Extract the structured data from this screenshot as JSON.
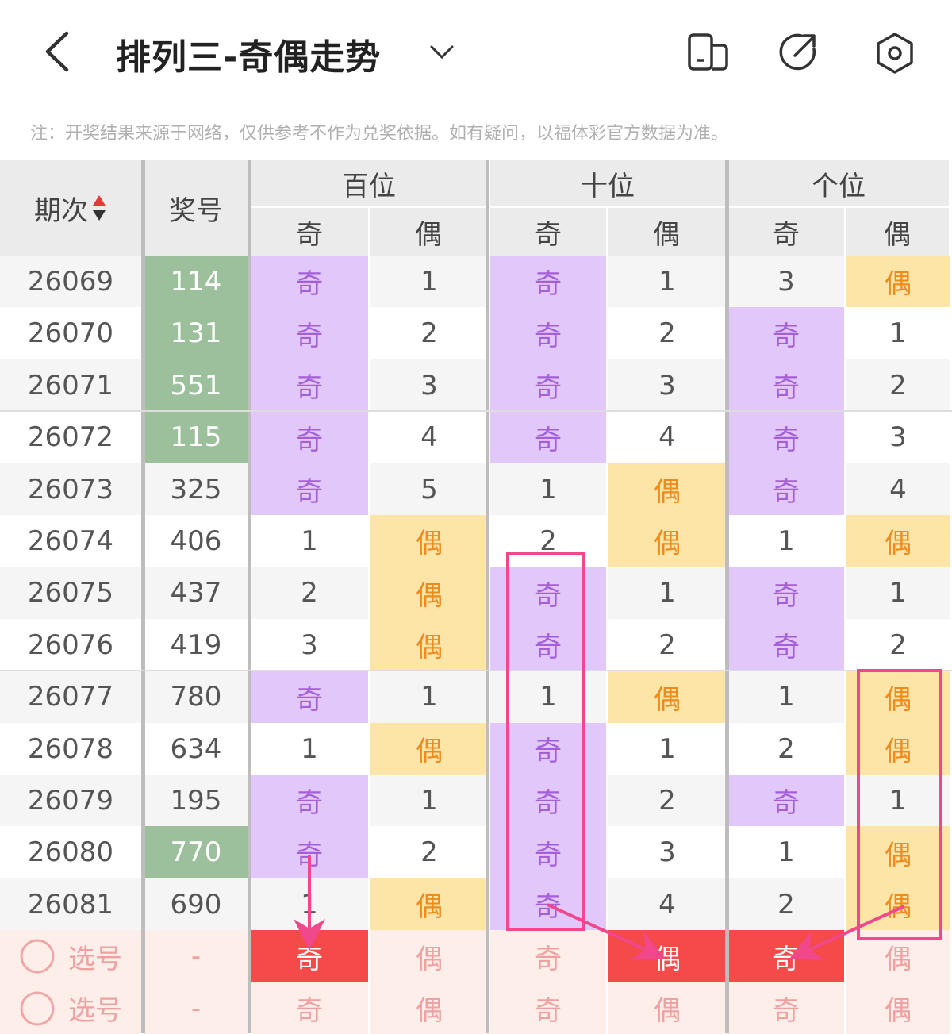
{
  "header": {
    "title": "排列三-奇偶走势",
    "icons": [
      "back-icon",
      "chevron-down-icon",
      "layout-toggle-icon",
      "share-icon",
      "settings-icon"
    ]
  },
  "note": "注：开奖结果来源于网络，仅供参考不作为兑奖依据。如有疑问，以福体彩官方数据为准。",
  "columns": {
    "period": "期次",
    "number": "奖号",
    "groups": [
      "百位",
      "十位",
      "个位"
    ],
    "sub": [
      "奇",
      "偶"
    ]
  },
  "colors": {
    "odd_bg": "#e2c7fb",
    "odd_text": "#a45fd8",
    "even_bg": "#fde4a7",
    "even_text": "#ef8a1c",
    "highlight_number": "#9dc09c",
    "selected": "#f44a4a",
    "annotation": "#f0488a"
  },
  "rows": [
    {
      "period": "26069",
      "number": "114",
      "green": true,
      "cells": [
        "奇",
        "1",
        "奇",
        "1",
        "3",
        "偶"
      ]
    },
    {
      "period": "26070",
      "number": "131",
      "green": true,
      "cells": [
        "奇",
        "2",
        "奇",
        "2",
        "奇",
        "1"
      ]
    },
    {
      "period": "26071",
      "number": "551",
      "green": true,
      "cells": [
        "奇",
        "3",
        "奇",
        "3",
        "奇",
        "2"
      ]
    },
    {
      "period": "26072",
      "number": "115",
      "green": true,
      "cells": [
        "奇",
        "4",
        "奇",
        "4",
        "奇",
        "3"
      ]
    },
    {
      "period": "26073",
      "number": "325",
      "green": false,
      "cells": [
        "奇",
        "5",
        "1",
        "偶",
        "奇",
        "4"
      ]
    },
    {
      "period": "26074",
      "number": "406",
      "green": false,
      "cells": [
        "1",
        "偶",
        "2",
        "偶",
        "1",
        "偶"
      ]
    },
    {
      "period": "26075",
      "number": "437",
      "green": false,
      "cells": [
        "2",
        "偶",
        "奇",
        "1",
        "奇",
        "1"
      ]
    },
    {
      "period": "26076",
      "number": "419",
      "green": false,
      "cells": [
        "3",
        "偶",
        "奇",
        "2",
        "奇",
        "2"
      ]
    },
    {
      "period": "26077",
      "number": "780",
      "green": false,
      "cells": [
        "奇",
        "1",
        "1",
        "偶",
        "1",
        "偶"
      ]
    },
    {
      "period": "26078",
      "number": "634",
      "green": false,
      "cells": [
        "1",
        "偶",
        "奇",
        "1",
        "2",
        "偶"
      ]
    },
    {
      "period": "26079",
      "number": "195",
      "green": false,
      "cells": [
        "奇",
        "1",
        "奇",
        "2",
        "奇",
        "1"
      ]
    },
    {
      "period": "26080",
      "number": "770",
      "green": true,
      "cells": [
        "奇",
        "2",
        "奇",
        "3",
        "1",
        "偶"
      ]
    },
    {
      "period": "26081",
      "number": "690",
      "green": false,
      "cells": [
        "1",
        "偶",
        "奇",
        "4",
        "2",
        "偶"
      ]
    }
  ],
  "pick_rows": [
    {
      "label": "选号",
      "number": "-",
      "cells": [
        "奇",
        "偶",
        "奇",
        "偶",
        "奇",
        "偶"
      ],
      "selected": [
        true,
        false,
        false,
        true,
        true,
        false
      ]
    },
    {
      "label": "选号",
      "number": "-",
      "cells": [
        "奇",
        "偶",
        "奇",
        "偶",
        "奇",
        "偶"
      ],
      "selected": [
        false,
        false,
        false,
        false,
        false,
        false
      ]
    }
  ]
}
